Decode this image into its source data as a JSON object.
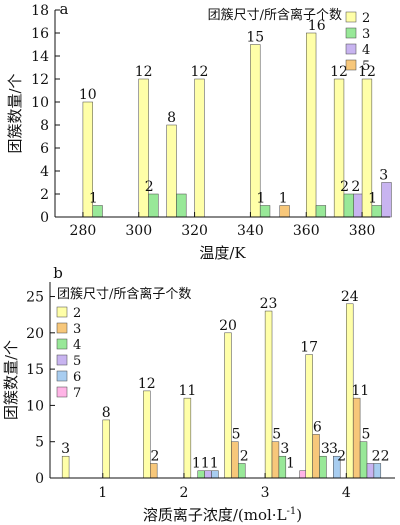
{
  "chart_data": [
    {
      "type": "bar",
      "panel_label": "a",
      "legend_title": "团簇尺寸/所含离子个数",
      "xlabel": "温度/K",
      "ylabel": "团簇数量/个",
      "xlim": [
        270,
        390
      ],
      "ylim": [
        0,
        18
      ],
      "xticks": [
        280,
        300,
        320,
        340,
        360,
        380
      ],
      "yticks": [
        0,
        2,
        4,
        6,
        8,
        10,
        12,
        14,
        16,
        18
      ],
      "bar_width": 3.5,
      "categories": [
        280,
        300,
        310,
        320,
        340,
        360,
        370,
        380
      ],
      "series": [
        {
          "name": "2",
          "color": "#ffffa8",
          "values": [
            10,
            12,
            8,
            12,
            15,
            16,
            12,
            12
          ]
        },
        {
          "name": "3",
          "color": "#98e898",
          "values": [
            1,
            2,
            2,
            null,
            1,
            1,
            2,
            1
          ]
        },
        {
          "name": "4",
          "color": "#c8b4f0",
          "values": [
            null,
            null,
            null,
            null,
            null,
            null,
            2,
            3
          ]
        },
        {
          "name": "5",
          "color": "#f7c77a",
          "values": [
            null,
            null,
            null,
            null,
            1,
            null,
            null,
            null
          ]
        }
      ],
      "data_labels": [
        {
          "x": 280,
          "y": 10,
          "text": "10"
        },
        {
          "x": 282,
          "y": 1,
          "text": "1"
        },
        {
          "x": 300,
          "y": 12,
          "text": "12"
        },
        {
          "x": 302,
          "y": 2,
          "text": "2"
        },
        {
          "x": 310,
          "y": 8,
          "text": "8"
        },
        {
          "x": 320,
          "y": 12,
          "text": "12"
        },
        {
          "x": 340,
          "y": 15,
          "text": "15"
        },
        {
          "x": 342,
          "y": 1,
          "text": "1"
        },
        {
          "x": 350,
          "y": 1,
          "text": "1"
        },
        {
          "x": 362,
          "y": 16,
          "text": "16"
        },
        {
          "x": 370,
          "y": 12,
          "text": "12"
        },
        {
          "x": 372,
          "y": 2,
          "text": "2"
        },
        {
          "x": 376,
          "y": 2,
          "text": "2"
        },
        {
          "x": 380,
          "y": 12,
          "text": "12"
        },
        {
          "x": 382,
          "y": 1,
          "text": "1"
        },
        {
          "x": 386,
          "y": 3,
          "text": "3"
        }
      ]
    },
    {
      "type": "bar",
      "panel_label": "b",
      "legend_title": "团簇尺寸/所含离子个数",
      "xlabel": "溶质离子浓度/(mol·L",
      "xlabel_sup": "-1",
      "xlabel_end": ")",
      "ylabel": "团簇数量/个",
      "xlim": [
        0.35,
        4.6
      ],
      "ylim": [
        0,
        27
      ],
      "xticks": [
        1,
        2,
        3,
        4
      ],
      "yticks": [
        0,
        5,
        10,
        15,
        20,
        25
      ],
      "bar_width": 0.085,
      "categories": [
        0.5,
        1,
        1.5,
        2,
        2.5,
        3,
        3.5,
        4
      ],
      "series": [
        {
          "name": "2",
          "color": "#ffffa8",
          "values": [
            3,
            8,
            12,
            11,
            20,
            23,
            17,
            24
          ]
        },
        {
          "name": "3",
          "color": "#f7c77a",
          "values": [
            null,
            null,
            2,
            null,
            5,
            5,
            6,
            11
          ]
        },
        {
          "name": "4",
          "color": "#98e898",
          "values": [
            null,
            null,
            null,
            1,
            2,
            3,
            3,
            5
          ]
        },
        {
          "name": "5",
          "color": "#c8b4f0",
          "values": [
            null,
            null,
            null,
            1,
            null,
            null,
            null,
            2
          ]
        },
        {
          "name": "6",
          "color": "#a8cdf0",
          "values": [
            null,
            null,
            null,
            1,
            null,
            null,
            3,
            2
          ]
        },
        {
          "name": "7",
          "color": "#ffb4e6",
          "values": [
            null,
            null,
            null,
            null,
            null,
            1,
            null,
            null
          ]
        }
      ],
      "data_labels": [
        {
          "x": 0.5,
          "y": 3,
          "text": "3"
        },
        {
          "x": 1,
          "y": 8,
          "text": "8"
        },
        {
          "x": 1.5,
          "y": 12,
          "text": "12"
        },
        {
          "x": 1.6,
          "y": 2,
          "text": "2"
        },
        {
          "x": 2,
          "y": 11,
          "text": "11"
        },
        {
          "x": 2.22,
          "y": 1,
          "text": "111"
        },
        {
          "x": 2.5,
          "y": 20,
          "text": "20"
        },
        {
          "x": 2.6,
          "y": 5,
          "text": "5"
        },
        {
          "x": 2.7,
          "y": 2,
          "text": "2"
        },
        {
          "x": 3,
          "y": 23,
          "text": "23"
        },
        {
          "x": 3.1,
          "y": 5,
          "text": "5"
        },
        {
          "x": 3.2,
          "y": 3,
          "text": "3"
        },
        {
          "x": 3.27,
          "y": 1,
          "text": "1"
        },
        {
          "x": 3.5,
          "y": 17,
          "text": "17"
        },
        {
          "x": 3.6,
          "y": 6,
          "text": "6"
        },
        {
          "x": 3.7,
          "y": 3,
          "text": "3"
        },
        {
          "x": 3.8,
          "y": 3,
          "text": "3"
        },
        {
          "x": 3.9,
          "y": 2,
          "text": "2"
        },
        {
          "x": 4,
          "y": 24,
          "text": "24"
        },
        {
          "x": 4.13,
          "y": 11,
          "text": "11"
        },
        {
          "x": 4.2,
          "y": 5,
          "text": "5"
        },
        {
          "x": 4.38,
          "y": 2,
          "text": "22"
        }
      ]
    }
  ]
}
